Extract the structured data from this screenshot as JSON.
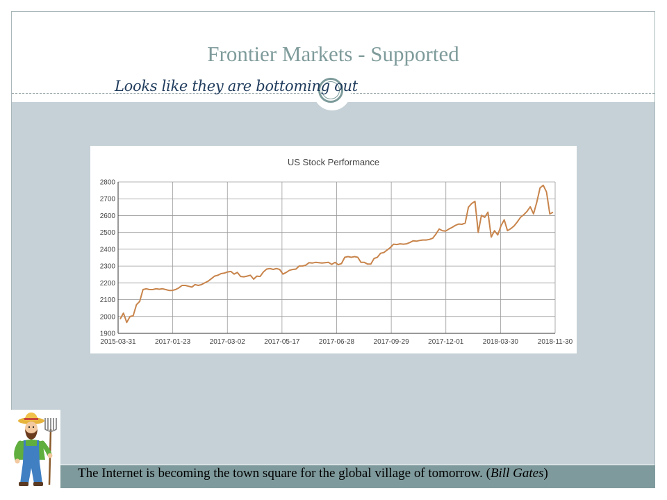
{
  "slide": {
    "title": "Frontier Markets - Supported",
    "subtitle": "Looks like they are bottoming out",
    "quote": {
      "text_before": "The Internet is becoming the town square for the global village of tomorrow. (",
      "author": "Bill Gates",
      "text_after": ")"
    },
    "farmer_icon": "farmer-with-pitchfork",
    "colors": {
      "title": "#7f9b9b",
      "content_bg": "#c5d1d6",
      "quote_bar": "#7f9a9c",
      "line": "#c8844b"
    }
  },
  "chart_data": {
    "type": "line",
    "title": "US Stock Performance",
    "xlabel": "",
    "ylabel": "",
    "x_ticks": [
      "2015-03-31",
      "2017-01-23",
      "2017-03-02",
      "2017-05-17",
      "2017-06-28",
      "2017-09-29",
      "2017-12-01",
      "2018-03-30",
      "2018-11-30"
    ],
    "y_ticks": [
      1900,
      2000,
      2100,
      2200,
      2300,
      2400,
      2500,
      2600,
      2700,
      2800
    ],
    "ylim": [
      1900,
      2800
    ],
    "grid": true,
    "legend": "none",
    "series": [
      {
        "color": "#c8844b",
        "values": [
          1985,
          2020,
          1965,
          2000,
          2005,
          2070,
          2090,
          2160,
          2165,
          2160,
          2160,
          2165,
          2162,
          2165,
          2160,
          2155,
          2155,
          2160,
          2170,
          2185,
          2185,
          2180,
          2175,
          2190,
          2185,
          2190,
          2200,
          2210,
          2225,
          2240,
          2245,
          2255,
          2258,
          2265,
          2268,
          2252,
          2262,
          2238,
          2236,
          2240,
          2245,
          2222,
          2240,
          2238,
          2265,
          2282,
          2285,
          2280,
          2285,
          2280,
          2252,
          2262,
          2275,
          2280,
          2282,
          2300,
          2300,
          2305,
          2320,
          2318,
          2322,
          2320,
          2318,
          2320,
          2322,
          2310,
          2322,
          2308,
          2315,
          2352,
          2356,
          2352,
          2356,
          2352,
          2322,
          2322,
          2312,
          2312,
          2345,
          2352,
          2376,
          2380,
          2395,
          2410,
          2430,
          2428,
          2432,
          2430,
          2432,
          2440,
          2450,
          2448,
          2452,
          2455,
          2455,
          2458,
          2465,
          2490,
          2520,
          2510,
          2508,
          2520,
          2530,
          2542,
          2550,
          2548,
          2555,
          2650,
          2672,
          2685,
          2500,
          2602,
          2590,
          2620,
          2472,
          2510,
          2485,
          2540,
          2575,
          2510,
          2522,
          2538,
          2562,
          2590,
          2605,
          2625,
          2652,
          2610,
          2680,
          2765,
          2780,
          2740,
          2610,
          2620
        ]
      }
    ]
  }
}
